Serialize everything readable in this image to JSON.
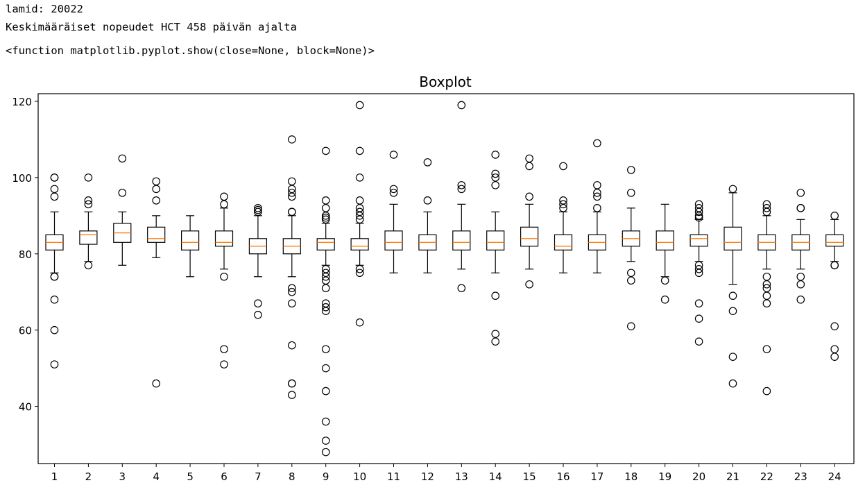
{
  "output": {
    "line1": "lamid: 20022",
    "line2": "Keskimääräiset nopeudet HCT 458 päivän ajalta",
    "line3": "<function matplotlib.pyplot.show(close=None, block=None)>"
  },
  "chart_data": {
    "type": "boxplot",
    "title": "Boxplot",
    "xlabel": "",
    "ylabel": "",
    "ylim": [
      25,
      122
    ],
    "yticks": [
      40,
      60,
      80,
      100,
      120
    ],
    "categories": [
      "1",
      "2",
      "3",
      "4",
      "5",
      "6",
      "7",
      "8",
      "9",
      "10",
      "11",
      "12",
      "13",
      "14",
      "15",
      "16",
      "17",
      "18",
      "19",
      "20",
      "21",
      "22",
      "23",
      "24"
    ],
    "colors": {
      "box": "#000000",
      "median": "#ff7f0e"
    },
    "boxes": [
      {
        "whislo": 75,
        "q1": 81,
        "med": 83,
        "q3": 85,
        "whishi": 91,
        "fliers": [
          100,
          100,
          97,
          95,
          74,
          74,
          68,
          60,
          51
        ]
      },
      {
        "whislo": 78,
        "q1": 82.5,
        "med": 85,
        "q3": 86,
        "whishi": 91,
        "fliers": [
          100,
          94,
          93,
          77
        ]
      },
      {
        "whislo": 77,
        "q1": 83,
        "med": 85.5,
        "q3": 88,
        "whishi": 91,
        "fliers": [
          105,
          96
        ]
      },
      {
        "whislo": 79,
        "q1": 83,
        "med": 84,
        "q3": 87,
        "whishi": 90,
        "fliers": [
          99,
          97,
          94,
          46
        ]
      },
      {
        "whislo": 74,
        "q1": 81,
        "med": 83,
        "q3": 86,
        "whishi": 90,
        "fliers": []
      },
      {
        "whislo": 76,
        "q1": 82,
        "med": 83,
        "q3": 86,
        "whishi": 92,
        "fliers": [
          95,
          93,
          74,
          55,
          51
        ]
      },
      {
        "whislo": 74,
        "q1": 80,
        "med": 82,
        "q3": 84,
        "whishi": 90,
        "fliers": [
          92,
          91.5,
          91,
          67,
          64
        ]
      },
      {
        "whislo": 74,
        "q1": 80,
        "med": 82,
        "q3": 84,
        "whishi": 90,
        "fliers": [
          110,
          99,
          97,
          96,
          95,
          91,
          91,
          71,
          70,
          67,
          56,
          46,
          46,
          43
        ]
      },
      {
        "whislo": 77,
        "q1": 81,
        "med": 83,
        "q3": 84,
        "whishi": 88,
        "fliers": [
          107,
          94,
          92,
          90,
          89.5,
          89,
          76,
          75,
          74,
          73,
          71,
          67,
          66,
          65,
          55,
          50,
          44,
          36,
          31,
          28
        ]
      },
      {
        "whislo": 77,
        "q1": 81,
        "med": 82,
        "q3": 84,
        "whishi": 88,
        "fliers": [
          119,
          107,
          100,
          94,
          92,
          91,
          90,
          89,
          76,
          75,
          62
        ]
      },
      {
        "whislo": 75,
        "q1": 81,
        "med": 83,
        "q3": 86,
        "whishi": 93,
        "fliers": [
          106,
          97,
          96
        ]
      },
      {
        "whislo": 75,
        "q1": 81,
        "med": 83,
        "q3": 85,
        "whishi": 91,
        "fliers": [
          104,
          94
        ]
      },
      {
        "whislo": 76,
        "q1": 81,
        "med": 83,
        "q3": 86,
        "whishi": 93,
        "fliers": [
          119,
          98,
          97,
          71
        ]
      },
      {
        "whislo": 75,
        "q1": 81,
        "med": 83,
        "q3": 86,
        "whishi": 91,
        "fliers": [
          106,
          101,
          100,
          98,
          69,
          59,
          57
        ]
      },
      {
        "whislo": 76,
        "q1": 82,
        "med": 84,
        "q3": 87,
        "whishi": 93,
        "fliers": [
          105,
          103,
          95,
          72
        ]
      },
      {
        "whislo": 75,
        "q1": 81,
        "med": 82,
        "q3": 85,
        "whishi": 91,
        "fliers": [
          103,
          94,
          93,
          92
        ]
      },
      {
        "whislo": 75,
        "q1": 81,
        "med": 83,
        "q3": 85,
        "whishi": 91,
        "fliers": [
          109,
          98,
          96,
          95,
          92
        ]
      },
      {
        "whislo": 78,
        "q1": 82,
        "med": 84,
        "q3": 86,
        "whishi": 92,
        "fliers": [
          102,
          96,
          75,
          73,
          61
        ]
      },
      {
        "whislo": 74,
        "q1": 81,
        "med": 83,
        "q3": 86,
        "whishi": 93,
        "fliers": [
          73,
          68
        ]
      },
      {
        "whislo": 78,
        "q1": 82,
        "med": 84,
        "q3": 85,
        "whishi": 89,
        "fliers": [
          93,
          92,
          91,
          90,
          89.5,
          77,
          76,
          75,
          67,
          63,
          57
        ]
      },
      {
        "whislo": 72,
        "q1": 81,
        "med": 83,
        "q3": 87,
        "whishi": 96,
        "fliers": [
          97,
          69,
          65,
          53,
          46
        ]
      },
      {
        "whislo": 76,
        "q1": 81,
        "med": 83,
        "q3": 85,
        "whishi": 90,
        "fliers": [
          93,
          92,
          91,
          74,
          72,
          71,
          69,
          67,
          55,
          44
        ]
      },
      {
        "whislo": 76,
        "q1": 81,
        "med": 83,
        "q3": 85,
        "whishi": 89,
        "fliers": [
          96,
          92,
          92,
          74,
          72,
          68
        ]
      },
      {
        "whislo": 78,
        "q1": 82,
        "med": 83,
        "q3": 85,
        "whishi": 89,
        "fliers": [
          90,
          77,
          77,
          61,
          55,
          53
        ]
      }
    ]
  }
}
